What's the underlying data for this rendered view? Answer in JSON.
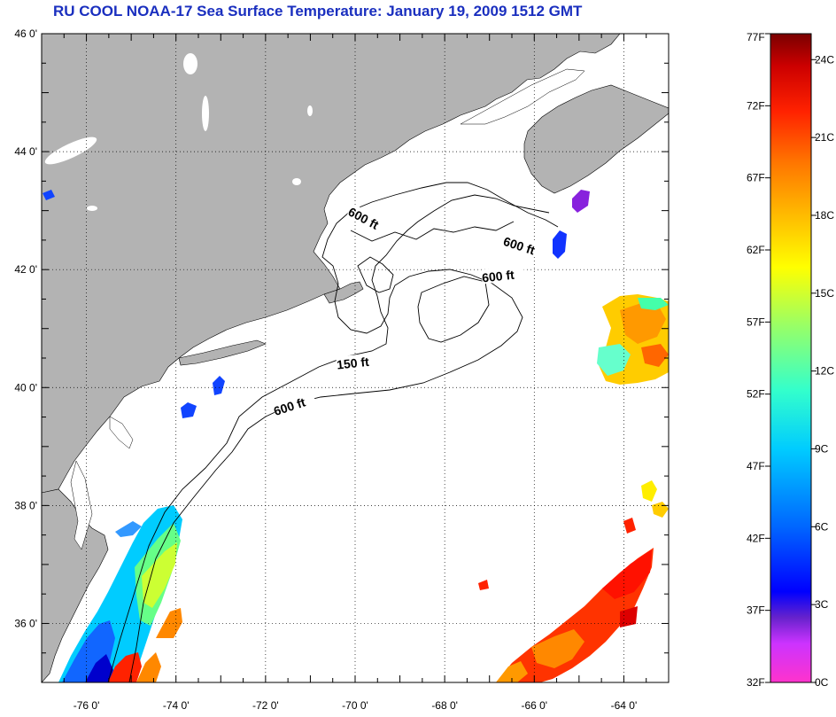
{
  "title": "RU COOL  NOAA-17  Sea Surface Temperature:  January 19, 2009 1512 GMT",
  "map": {
    "lat_labels": [
      "46 0'",
      "44 0'",
      "42 0'",
      "40 0'",
      "38 0'",
      "36 0'"
    ],
    "lon_labels": [
      "-76 0'",
      "-74 0'",
      "-72 0'",
      "-70 0'",
      "-68 0'",
      "-66 0'",
      "-64 0'"
    ],
    "lat_range": [
      35,
      46
    ],
    "lon_range": [
      -77,
      -63
    ],
    "contour_labels": [
      "600 ft",
      "600 ft",
      "600 ft",
      "150 ft",
      "600 ft"
    ],
    "colors": {
      "land": "#b3b3b3",
      "ocean": "#ffffff",
      "grid": "#000000"
    }
  },
  "colorbar": {
    "fahrenheit_labels": [
      "77F",
      "72F",
      "67F",
      "62F",
      "57F",
      "52F",
      "47F",
      "42F",
      "37F",
      "32F"
    ],
    "celsius_labels": [
      "24C",
      "21C",
      "18C",
      "15C",
      "12C",
      "9C",
      "6C",
      "3C",
      "0C"
    ],
    "gradient": [
      "#ff33cc",
      "#cc33ff",
      "#6622cc",
      "#0000ff",
      "#0066ff",
      "#00ccff",
      "#33ffcc",
      "#99ff66",
      "#ffff00",
      "#ffbb00",
      "#ff7700",
      "#ff2200",
      "#cc0000",
      "#7a0000"
    ]
  }
}
